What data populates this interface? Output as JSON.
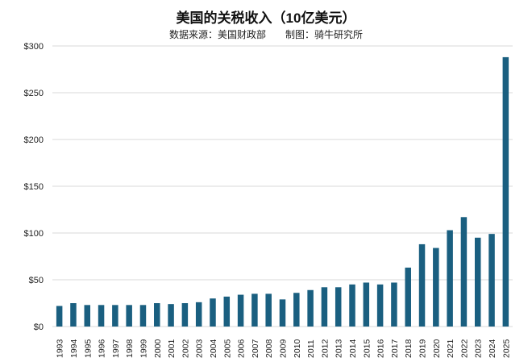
{
  "chart_data": {
    "type": "bar",
    "title": "美国的关税收入（10亿美元）",
    "subtitle": "数据来源：美国财政部　　制图：骑牛研究所",
    "categories": [
      "1993",
      "1994",
      "1995",
      "1996",
      "1997",
      "1998",
      "1999",
      "2000",
      "2001",
      "2002",
      "2003",
      "2004",
      "2005",
      "2006",
      "2007",
      "2008",
      "2009",
      "2010",
      "2011",
      "2012",
      "2013",
      "2014",
      "2015",
      "2016",
      "2017",
      "2018",
      "2019",
      "2020",
      "2021",
      "2022",
      "2023",
      "2024",
      "2025"
    ],
    "values": [
      22,
      25,
      23,
      23,
      23,
      23,
      23,
      25,
      24,
      25,
      26,
      30,
      32,
      34,
      35,
      35,
      29,
      36,
      39,
      42,
      42,
      45,
      47,
      45,
      47,
      63,
      88,
      84,
      103,
      117,
      95,
      99,
      288
    ],
    "ylim": [
      0,
      300
    ],
    "yticks": [
      "$0",
      "$50",
      "$100",
      "$150",
      "$200",
      "$250",
      "$300"
    ],
    "grid": true,
    "bar_color": "#1a5f80"
  }
}
